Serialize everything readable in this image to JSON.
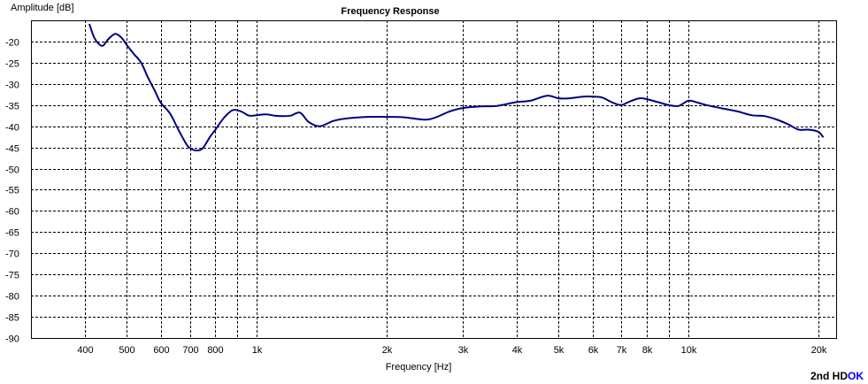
{
  "chart_data": {
    "type": "line",
    "title": "Frequency Response",
    "xlabel": "Frequency [Hz]",
    "ylabel": "Amplitude [dB]",
    "x_scale": "log",
    "xlim": [
      300,
      22000
    ],
    "ylim": [
      -90,
      -15
    ],
    "grid": true,
    "x_ticks": [
      {
        "value": 400,
        "label": "400"
      },
      {
        "value": 500,
        "label": "500"
      },
      {
        "value": 600,
        "label": "600"
      },
      {
        "value": 700,
        "label": "700"
      },
      {
        "value": 800,
        "label": "800"
      },
      {
        "value": 1000,
        "label": "1k"
      },
      {
        "value": 2000,
        "label": "2k"
      },
      {
        "value": 3000,
        "label": "3k"
      },
      {
        "value": 4000,
        "label": "4k"
      },
      {
        "value": 5000,
        "label": "5k"
      },
      {
        "value": 6000,
        "label": "6k"
      },
      {
        "value": 7000,
        "label": "7k"
      },
      {
        "value": 8000,
        "label": "8k"
      },
      {
        "value": 10000,
        "label": "10k"
      },
      {
        "value": 20000,
        "label": "20k"
      }
    ],
    "x_minor_grid": [
      900,
      9000
    ],
    "y_ticks": [
      -20,
      -25,
      -30,
      -35,
      -40,
      -45,
      -50,
      -55,
      -60,
      -65,
      -70,
      -75,
      -80,
      -85,
      -90
    ],
    "series": [
      {
        "color": "#000080",
        "x": [
          410,
          420,
          430,
          440,
          450,
          460,
          470,
          480,
          490,
          500,
          520,
          540,
          560,
          580,
          600,
          630,
          660,
          690,
          710,
          730,
          750,
          780,
          800,
          840,
          880,
          920,
          960,
          1000,
          1050,
          1100,
          1150,
          1200,
          1260,
          1320,
          1400,
          1500,
          1600,
          1800,
          2000,
          2200,
          2500,
          2800,
          3000,
          3300,
          3600,
          4000,
          4300,
          4700,
          5000,
          5300,
          5700,
          6000,
          6300,
          6700,
          7000,
          7300,
          7700,
          8000,
          8500,
          9000,
          9500,
          10000,
          10500,
          11000,
          12000,
          13000,
          14000,
          15000,
          16000,
          17000,
          18000,
          19000,
          20000,
          20500
        ],
        "y": [
          -16,
          -19,
          -20.5,
          -21,
          -19.8,
          -18.8,
          -18.2,
          -18.6,
          -19.5,
          -20.8,
          -23,
          -25,
          -28.5,
          -31.5,
          -34.5,
          -37,
          -41,
          -44.5,
          -45.5,
          -45.7,
          -45.2,
          -42.5,
          -41,
          -38,
          -36.2,
          -36.5,
          -37.5,
          -37.4,
          -37.2,
          -37.5,
          -37.6,
          -37.5,
          -36.8,
          -39,
          -40,
          -38.8,
          -38.2,
          -37.8,
          -37.8,
          -37.9,
          -38.4,
          -36.5,
          -35.7,
          -35.3,
          -35.2,
          -34.3,
          -34,
          -32.8,
          -33.4,
          -33.4,
          -33,
          -33,
          -33.2,
          -34.5,
          -35,
          -34.2,
          -33.4,
          -33.6,
          -34.3,
          -35,
          -35.2,
          -34,
          -34.4,
          -35,
          -35.8,
          -36.5,
          -37.4,
          -37.6,
          -38.4,
          -39.5,
          -40.8,
          -40.8,
          -41.3,
          -42.5
        ]
      }
    ]
  },
  "status": {
    "prefix": "2nd HD",
    "suffix": "OK",
    "prefix_color": "#000000",
    "suffix_color": "#0000ff"
  }
}
